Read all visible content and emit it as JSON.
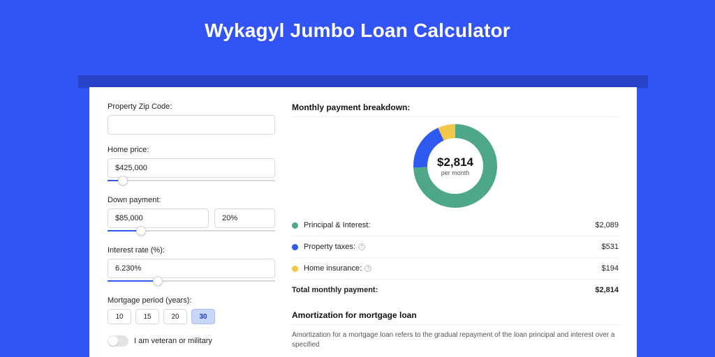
{
  "title": "Wykagyl Jumbo Loan Calculator",
  "colors": {
    "bg": "#3254f4",
    "band": "#2742c8",
    "series_pi": "#4ea887",
    "series_tax": "#2f5af0",
    "series_ins": "#f2c84b"
  },
  "left": {
    "zip": {
      "label": "Property Zip Code:",
      "value": ""
    },
    "home_price": {
      "label": "Home price:",
      "value": "$425,000",
      "slider_pct": 9
    },
    "down_payment": {
      "label": "Down payment:",
      "value_amount": "$85,000",
      "value_pct": "20%",
      "slider_pct": 20
    },
    "interest": {
      "label": "Interest rate (%):",
      "value": "6.230%",
      "slider_pct": 30
    },
    "period": {
      "label": "Mortgage period (years):",
      "options": [
        "10",
        "15",
        "20",
        "30"
      ],
      "selected_index": 3
    },
    "veteran": {
      "label": "I am veteran or military",
      "on": false
    }
  },
  "right": {
    "breakdown_title": "Monthly payment breakdown:",
    "donut": {
      "center_amount": "$2,814",
      "center_sub": "per month",
      "slices": [
        {
          "key": "pi",
          "pct": 74.24,
          "color": "#4ea887"
        },
        {
          "key": "tax",
          "pct": 18.87,
          "color": "#2f5af0"
        },
        {
          "key": "ins",
          "pct": 6.89,
          "color": "#f2c84b"
        }
      ],
      "stroke_width": 20,
      "radius": 50
    },
    "legend": [
      {
        "label": "Principal & Interest:",
        "value": "$2,089",
        "color": "#4ea887",
        "info": false
      },
      {
        "label": "Property taxes:",
        "value": "$531",
        "color": "#2f5af0",
        "info": true
      },
      {
        "label": "Home insurance:",
        "value": "$194",
        "color": "#f2c84b",
        "info": true
      }
    ],
    "total": {
      "label": "Total monthly payment:",
      "value": "$2,814"
    },
    "amort": {
      "title": "Amortization for mortgage loan",
      "text": "Amortization for a mortgage loan refers to the gradual repayment of the loan principal and interest over a specified"
    }
  }
}
